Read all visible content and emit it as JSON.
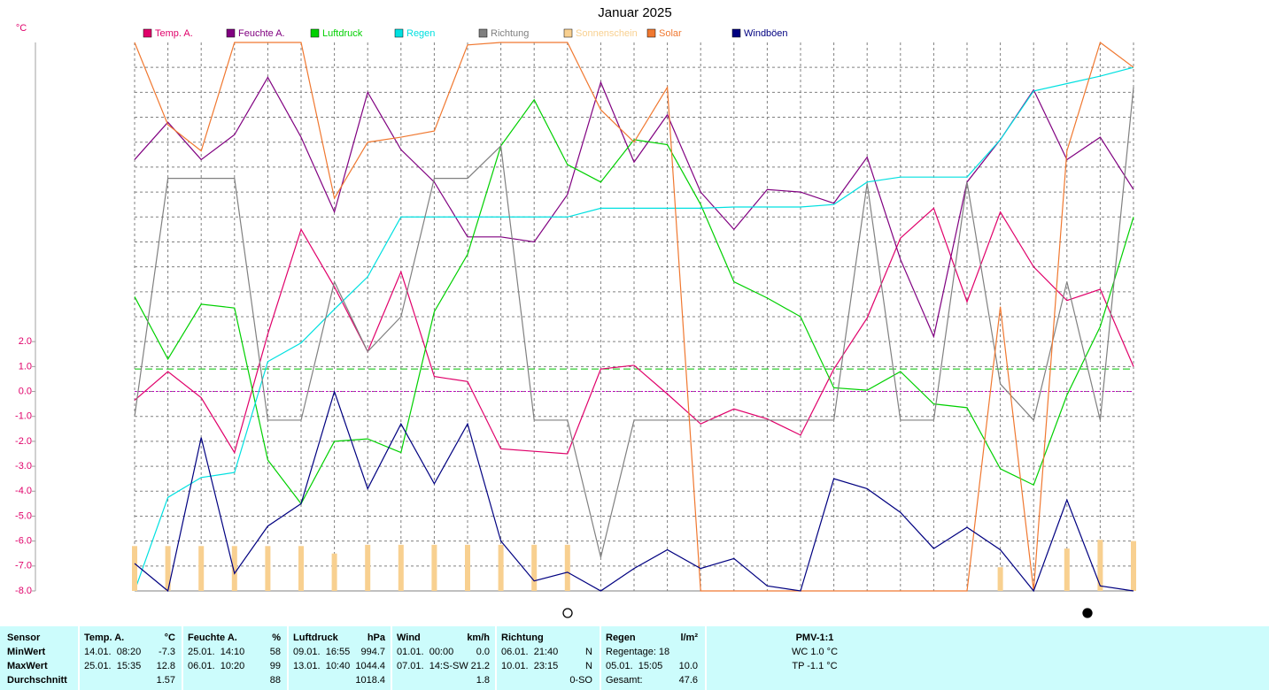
{
  "chart_data": {
    "type": "line",
    "title": "Januar 2025",
    "y_unit": "°C",
    "ylim": [
      -8,
      14
    ],
    "yticks": [
      {
        "value": -8,
        "label": "-8.0"
      },
      {
        "value": -7,
        "label": "-7.0"
      },
      {
        "value": -6,
        "label": "-6.0"
      },
      {
        "value": -5,
        "label": "-5.0"
      },
      {
        "value": -4,
        "label": "-4.0"
      },
      {
        "value": -3,
        "label": "-3.0"
      },
      {
        "value": -2,
        "label": "-2.0"
      },
      {
        "value": -1,
        "label": "-1.0"
      },
      {
        "value": 0,
        "label": "0.0"
      },
      {
        "value": 1,
        "label": "1.0"
      },
      {
        "value": 2,
        "label": "2.0"
      }
    ],
    "ygrid": [
      3,
      4,
      5,
      6,
      7,
      8,
      9,
      10,
      11,
      12,
      13
    ],
    "grid": true,
    "reference_lines": [
      {
        "value": 0.9,
        "color": "#00c000"
      },
      {
        "value": 0,
        "color": "#c000c0"
      }
    ],
    "series": [
      {
        "name": "Temp. A.",
        "color": "#e0006a",
        "mark": "line",
        "values": [
          -0.35,
          0.8,
          -0.25,
          -2.45,
          2.3,
          6.5,
          4.2,
          1.6,
          4.8,
          0.6,
          0.4,
          -2.3,
          -2.4,
          -2.5,
          0.9,
          1.05,
          -0.1,
          -1.3,
          -0.7,
          -1.1,
          -1.75,
          0.9,
          2.95,
          6.15,
          7.35,
          3.6,
          7.2,
          5.0,
          3.65,
          4.1,
          1.0
        ]
      },
      {
        "name": "Feuchte A.",
        "color": "#800080",
        "mark": "line",
        "values": [
          9.3,
          10.8,
          9.3,
          10.3,
          12.6,
          10.2,
          7.2,
          12.0,
          9.7,
          8.4,
          6.2,
          6.2,
          6.0,
          7.9,
          12.4,
          9.2,
          11.1,
          8.0,
          6.5,
          8.1,
          8.0,
          7.55,
          9.4,
          5.3,
          2.2,
          8.4,
          10.1,
          12.1,
          9.3,
          10.2,
          8.1
        ]
      },
      {
        "name": "Luftdruck",
        "color": "#00d000",
        "mark": "line",
        "values": [
          3.8,
          1.3,
          3.5,
          3.35,
          -2.75,
          -4.5,
          -2.0,
          -1.9,
          -2.45,
          3.2,
          5.5,
          9.85,
          11.7,
          9.1,
          8.4,
          10.1,
          9.9,
          7.5,
          4.4,
          3.75,
          3.0,
          0.15,
          0.05,
          0.8,
          -0.5,
          -0.65,
          -3.1,
          -3.75,
          -0.15,
          2.6,
          7.0
        ]
      },
      {
        "name": "Regen",
        "color": "#00e0e0",
        "mark": "line",
        "values": [
          -8.0,
          -4.25,
          -3.45,
          -3.25,
          1.2,
          1.95,
          3.3,
          4.6,
          7.0,
          7.0,
          7.0,
          7.0,
          7.0,
          7.0,
          7.35,
          7.35,
          7.35,
          7.35,
          7.4,
          7.4,
          7.4,
          7.5,
          8.4,
          8.6,
          8.6,
          8.6,
          10.1,
          12.05,
          12.35,
          12.65,
          13.0
        ]
      },
      {
        "name": "Richtung",
        "color": "#808080",
        "mark": "line",
        "values": [
          -1.0,
          8.55,
          8.55,
          8.55,
          -1.15,
          -1.15,
          4.4,
          1.6,
          3.0,
          8.55,
          8.55,
          9.85,
          -1.15,
          -1.15,
          -6.65,
          -1.15,
          -1.15,
          -1.15,
          -1.15,
          -1.15,
          -1.15,
          -1.15,
          8.35,
          -1.15,
          -1.15,
          8.4,
          0.3,
          -1.15,
          4.4,
          -1.15,
          12.2
        ]
      },
      {
        "name": "Sonnenschein",
        "color": "#f8d090",
        "mark": "bar",
        "values": [
          -6.2,
          -6.2,
          -6.2,
          -6.2,
          -6.2,
          -6.2,
          -6.5,
          -6.15,
          -6.15,
          -6.15,
          -6.15,
          -6.15,
          -6.15,
          -6.15,
          -8.0,
          -8.0,
          -8.0,
          -8.0,
          -8.0,
          -8.0,
          -8.0,
          -8.0,
          -8.0,
          -8.0,
          -8.0,
          -8.0,
          -7.05,
          -8.0,
          -6.3,
          -5.95,
          -6.0
        ]
      },
      {
        "name": "Solar",
        "color": "#f07830",
        "mark": "line",
        "values": [
          14.0,
          10.7,
          9.65,
          14.0,
          14.0,
          14.0,
          7.75,
          10.0,
          10.2,
          10.45,
          13.9,
          14.0,
          14.0,
          14.0,
          11.3,
          10.0,
          12.2,
          -8.0,
          -8.0,
          -8.0,
          -8.0,
          -8.0,
          -8.0,
          -8.0,
          -8.0,
          -8.0,
          3.4,
          -8.0,
          9.65,
          14.0,
          13.0
        ]
      },
      {
        "name": "Windböen",
        "color": "#000080",
        "mark": "line",
        "values": [
          -6.9,
          -8.0,
          -1.85,
          -7.3,
          -5.4,
          -4.5,
          0.0,
          -3.9,
          -1.3,
          -3.7,
          -1.3,
          -6.0,
          -7.6,
          -7.25,
          -8.0,
          -7.1,
          -6.35,
          -7.1,
          -6.7,
          -7.8,
          -8.0,
          -3.5,
          -3.9,
          -4.85,
          -6.3,
          -5.45,
          -6.35,
          -8.0,
          -4.35,
          -7.8,
          -8.0
        ]
      }
    ]
  },
  "stats_table": {
    "columns": [
      {
        "header_left": "Sensor",
        "rows": [
          {
            "left": "MinWert"
          },
          {
            "left": "MaxWert"
          },
          {
            "left": "Durchschnitt"
          }
        ]
      },
      {
        "header_left": "Temp. A.",
        "header_right": "°C",
        "rows": [
          {
            "left": "14.01.  08:20",
            "right": "-7.3"
          },
          {
            "left": "25.01.  15:35",
            "right": "12.8"
          },
          {
            "right": "1.57"
          }
        ]
      },
      {
        "header_left": "Feuchte A.",
        "header_right": "%",
        "rows": [
          {
            "left": "25.01.  14:10",
            "right": "58"
          },
          {
            "left": "06.01.  10:20",
            "right": "99"
          },
          {
            "right": "88"
          }
        ]
      },
      {
        "header_left": "Luftdruck",
        "header_right": "hPa",
        "rows": [
          {
            "left": "09.01.  16:55",
            "right": "994.7"
          },
          {
            "left": "13.01.  10:40",
            "right": "1044.4"
          },
          {
            "right": "1018.4"
          }
        ]
      },
      {
        "header_left": "Wind",
        "header_right": "km/h",
        "rows": [
          {
            "left": "01.01.  00:00",
            "right": "0.0"
          },
          {
            "left": "07.01.  14:S-SW",
            "right": "21.2"
          },
          {
            "right": "1.8"
          }
        ]
      },
      {
        "header_left": "Richtung",
        "rows": [
          {
            "left": "06.01.  21:40",
            "right": "N"
          },
          {
            "left": "10.01.  23:15",
            "right": "N"
          },
          {
            "right": "0-SO"
          }
        ]
      },
      {
        "header_left": "Regen",
        "header_right": "l/m²",
        "rows": [
          {
            "left": "Regentage: 18"
          },
          {
            "left": "05.01.  15:05",
            "right": "10.0"
          },
          {
            "left": "Gesamt:",
            "right": "47.6"
          }
        ]
      },
      {
        "header_center": "PMV-1:1",
        "rows": [
          {
            "center": "WC 1.0 °C"
          },
          {
            "center": "TP -1.1 °C"
          }
        ]
      }
    ]
  }
}
